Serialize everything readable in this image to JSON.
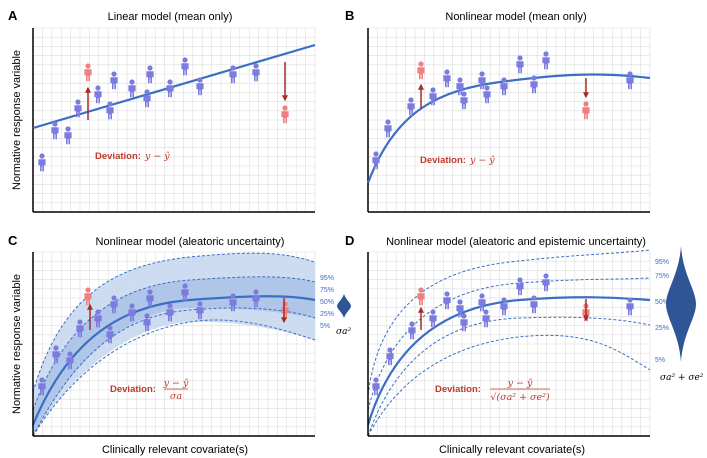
{
  "panels": {
    "A": {
      "label": "A",
      "title": "Linear model (mean only)",
      "deviation_label": "Deviation:",
      "deviation_expr": "y − ŷ"
    },
    "B": {
      "label": "B",
      "title": "Nonlinear model (mean only)",
      "deviation_label": "Deviation:",
      "deviation_expr": "y − ŷ"
    },
    "C": {
      "label": "C",
      "title": "Nonlinear model (aleatoric uncertainty)",
      "deviation_label": "Deviation:",
      "deviation_num": "y − ŷ",
      "deviation_den": "σa",
      "sigma_label": "σa²",
      "percentiles": [
        "95%",
        "75%",
        "50%",
        "25%",
        "5%"
      ]
    },
    "D": {
      "label": "D",
      "title": "Nonlinear model (aleatoric and epistemic uncertainty)",
      "deviation_label": "Deviation:",
      "deviation_num": "y − ŷ",
      "deviation_den": "√(σa² + σe²)",
      "sigma_label": "σa² + σe²",
      "percentiles": [
        "95%",
        "75%",
        "50%",
        "25%",
        "5%"
      ]
    }
  },
  "axes": {
    "ylabel": "Normative response variable",
    "xlabel": "Clinically relevant covariate(s)"
  },
  "colors": {
    "person_normal": "#7b7be0",
    "person_outlier": "#f08080",
    "mean_line": "#3a6fc4",
    "band": "#c9d8ef",
    "deviation_arrow": "#a52a2a",
    "grid": "#dcdcdc"
  }
}
